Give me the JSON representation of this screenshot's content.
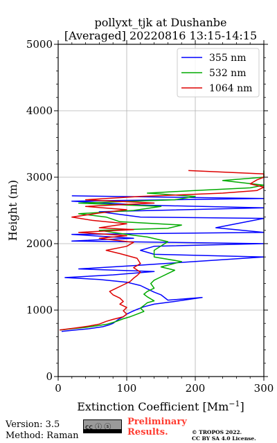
{
  "chart_data": {
    "type": "line",
    "title": [
      "pollyxt_tjk at Dushanbe",
      "[Averaged] 20220816 13:15-14:15"
    ],
    "xlabel": "Extinction Coefficient [Mm",
    "xlabel_sup": "−1",
    "xlabel_end": "]",
    "ylabel": "Height (m)",
    "xlim": [
      0,
      300
    ],
    "ylim": [
      0,
      5000
    ],
    "xticks": [
      0,
      100,
      200,
      300
    ],
    "yticks": [
      0,
      1000,
      2000,
      3000,
      4000,
      5000
    ],
    "grid": true,
    "legend_position": "top-right",
    "series": [
      {
        "name": "355 nm",
        "color": "#0000ff",
        "points": [
          [
            5,
            680
          ],
          [
            25,
            700
          ],
          [
            45,
            720
          ],
          [
            65,
            750
          ],
          [
            75,
            780
          ],
          [
            80,
            800
          ],
          [
            88,
            860
          ],
          [
            95,
            900
          ],
          [
            100,
            940
          ],
          [
            108,
            980
          ],
          [
            115,
            1010
          ],
          [
            125,
            1050
          ],
          [
            140,
            1090
          ],
          [
            170,
            1130
          ],
          [
            210,
            1190
          ],
          [
            160,
            1150
          ],
          [
            150,
            1230
          ],
          [
            140,
            1270
          ],
          [
            130,
            1320
          ],
          [
            120,
            1370
          ],
          [
            100,
            1420
          ],
          [
            60,
            1460
          ],
          [
            10,
            1490
          ],
          [
            80,
            1530
          ],
          [
            140,
            1580
          ],
          [
            30,
            1620
          ],
          [
            110,
            1670
          ],
          [
            300,
            1800
          ],
          [
            140,
            1840
          ],
          [
            120,
            1900
          ],
          [
            140,
            1960
          ],
          [
            300,
            2000
          ],
          [
            20,
            2040
          ],
          [
            110,
            2080
          ],
          [
            20,
            2140
          ],
          [
            300,
            2170
          ],
          [
            230,
            2240
          ],
          [
            300,
            2380
          ],
          [
            120,
            2400
          ],
          [
            60,
            2480
          ],
          [
            300,
            2540
          ],
          [
            120,
            2580
          ],
          [
            20,
            2640
          ],
          [
            300,
            2680
          ],
          [
            20,
            2720
          ]
        ]
      },
      {
        "name": "532 nm",
        "color": "#00aa00",
        "points": [
          [
            3,
            700
          ],
          [
            20,
            720
          ],
          [
            40,
            740
          ],
          [
            60,
            770
          ],
          [
            72,
            790
          ],
          [
            85,
            830
          ],
          [
            95,
            870
          ],
          [
            105,
            900
          ],
          [
            115,
            940
          ],
          [
            125,
            980
          ],
          [
            120,
            1030
          ],
          [
            125,
            1070
          ],
          [
            130,
            1110
          ],
          [
            140,
            1140
          ],
          [
            130,
            1200
          ],
          [
            125,
            1240
          ],
          [
            130,
            1280
          ],
          [
            140,
            1330
          ],
          [
            135,
            1400
          ],
          [
            140,
            1450
          ],
          [
            150,
            1500
          ],
          [
            160,
            1550
          ],
          [
            170,
            1600
          ],
          [
            150,
            1650
          ],
          [
            180,
            1730
          ],
          [
            140,
            1800
          ],
          [
            140,
            1900
          ],
          [
            160,
            2030
          ],
          [
            130,
            2100
          ],
          [
            100,
            2140
          ],
          [
            60,
            2200
          ],
          [
            160,
            2230
          ],
          [
            180,
            2280
          ],
          [
            90,
            2330
          ],
          [
            70,
            2400
          ],
          [
            30,
            2450
          ],
          [
            110,
            2500
          ],
          [
            150,
            2560
          ],
          [
            30,
            2610
          ],
          [
            170,
            2660
          ],
          [
            200,
            2710
          ],
          [
            130,
            2760
          ],
          [
            200,
            2800
          ],
          [
            280,
            2840
          ],
          [
            300,
            2880
          ],
          [
            240,
            2950
          ],
          [
            300,
            3000
          ],
          [
            300,
            3100
          ]
        ]
      },
      {
        "name": "1064 nm",
        "color": "#dd0000",
        "points": [
          [
            2,
            700
          ],
          [
            25,
            730
          ],
          [
            45,
            760
          ],
          [
            60,
            790
          ],
          [
            70,
            830
          ],
          [
            80,
            860
          ],
          [
            95,
            900
          ],
          [
            100,
            940
          ],
          [
            95,
            990
          ],
          [
            100,
            1040
          ],
          [
            90,
            1090
          ],
          [
            95,
            1130
          ],
          [
            90,
            1180
          ],
          [
            80,
            1230
          ],
          [
            75,
            1280
          ],
          [
            85,
            1330
          ],
          [
            95,
            1380
          ],
          [
            105,
            1430
          ],
          [
            110,
            1480
          ],
          [
            115,
            1520
          ],
          [
            120,
            1570
          ],
          [
            110,
            1640
          ],
          [
            120,
            1700
          ],
          [
            115,
            1780
          ],
          [
            90,
            1850
          ],
          [
            70,
            1900
          ],
          [
            100,
            1960
          ],
          [
            110,
            2020
          ],
          [
            60,
            2080
          ],
          [
            100,
            2120
          ],
          [
            30,
            2170
          ],
          [
            110,
            2210
          ],
          [
            60,
            2240
          ],
          [
            100,
            2300
          ],
          [
            50,
            2350
          ],
          [
            20,
            2400
          ],
          [
            60,
            2460
          ],
          [
            100,
            2510
          ],
          [
            40,
            2560
          ],
          [
            140,
            2610
          ],
          [
            40,
            2660
          ],
          [
            120,
            2710
          ],
          [
            240,
            2760
          ],
          [
            290,
            2800
          ],
          [
            300,
            2850
          ],
          [
            280,
            2900
          ],
          [
            290,
            2960
          ],
          [
            300,
            3000
          ],
          [
            300,
            3050
          ],
          [
            190,
            3100
          ]
        ]
      }
    ]
  },
  "footer": {
    "version": "Version: 3.5",
    "method": "Method: Raman",
    "license_badge": "cc  ⓘ  ⓢ",
    "preliminary_line1": "Preliminary",
    "preliminary_line2": "Results.",
    "copyright_line1": "© TROPOS 2022.",
    "copyright_line2": "CC BY SA 4.0 License."
  }
}
